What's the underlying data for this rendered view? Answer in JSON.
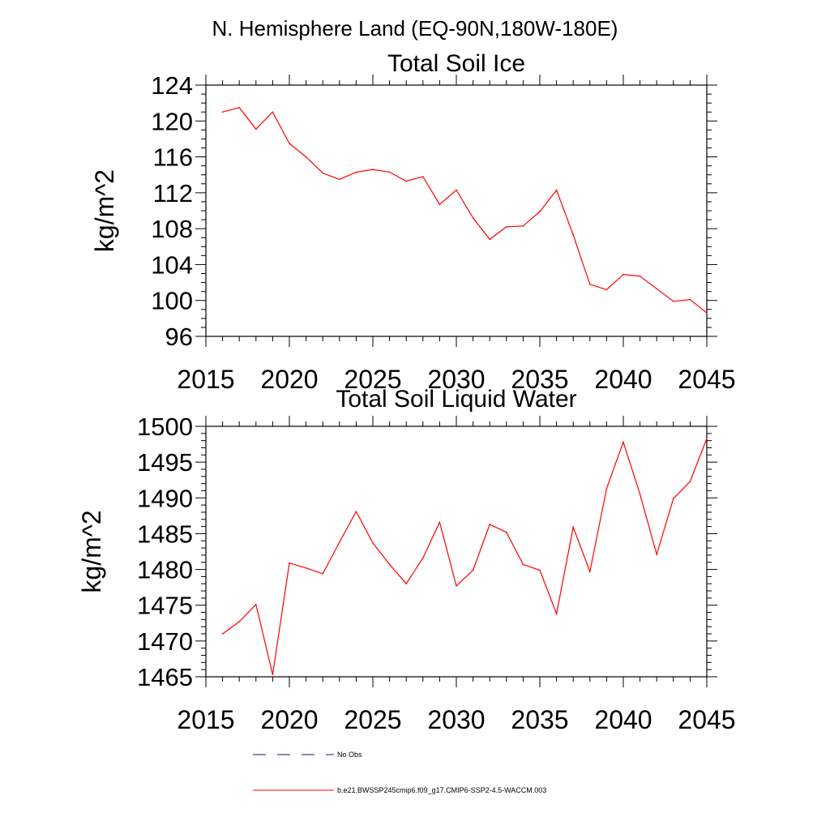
{
  "figure": {
    "main_title": "N. Hemisphere Land (EQ-90N,180W-180E)"
  },
  "chart_data": [
    {
      "type": "line",
      "title": "Total Soil Ice",
      "ylabel": "kg/m^2",
      "xlim": [
        2015,
        2045
      ],
      "ylim": [
        96,
        124
      ],
      "x_ticks": [
        2015,
        2020,
        2025,
        2030,
        2035,
        2040,
        2045
      ],
      "x_tick_labels": [
        "2015",
        "2020",
        "2025",
        "2030",
        "2035",
        "2040",
        "2045"
      ],
      "y_ticks": [
        96,
        100,
        104,
        108,
        112,
        116,
        120,
        124
      ],
      "y_tick_labels": [
        "96",
        "100",
        "104",
        "108",
        "112",
        "116",
        "120",
        "124"
      ],
      "x_minor_step": 1,
      "y_minor_step": 1,
      "grid": false,
      "series": [
        {
          "color": "#ff0000",
          "x": [
            2016,
            2017,
            2018,
            2019,
            2020,
            2021,
            2022,
            2023,
            2024,
            2025,
            2026,
            2027,
            2028,
            2029,
            2030,
            2031,
            2032,
            2033,
            2034,
            2035,
            2036,
            2037,
            2038,
            2039,
            2040,
            2041,
            2042,
            2043,
            2044,
            2045
          ],
          "values": [
            121.0,
            121.5,
            119.1,
            121.0,
            117.5,
            116.0,
            114.2,
            113.5,
            114.3,
            114.6,
            114.3,
            113.3,
            113.8,
            110.7,
            112.3,
            109.2,
            106.8,
            108.2,
            108.3,
            109.9,
            112.3,
            107.3,
            101.8,
            101.2,
            102.9,
            102.7,
            101.3,
            99.9,
            100.1,
            98.6
          ]
        }
      ]
    },
    {
      "type": "line",
      "title": "Total Soil Liquid Water",
      "ylabel": "kg/m^2",
      "xlim": [
        2015,
        2045
      ],
      "ylim": [
        1465,
        1500
      ],
      "x_ticks": [
        2015,
        2020,
        2025,
        2030,
        2035,
        2040,
        2045
      ],
      "x_tick_labels": [
        "2015",
        "2020",
        "2025",
        "2030",
        "2035",
        "2040",
        "2045"
      ],
      "y_ticks": [
        1465,
        1470,
        1475,
        1480,
        1485,
        1490,
        1495,
        1500
      ],
      "y_tick_labels": [
        "1465",
        "1470",
        "1475",
        "1480",
        "1485",
        "1490",
        "1495",
        "1500"
      ],
      "x_minor_step": 1,
      "y_minor_step": 1,
      "grid": false,
      "series": [
        {
          "color": "#ff0000",
          "x": [
            2016,
            2017,
            2018,
            2019,
            2020,
            2021,
            2022,
            2023,
            2024,
            2025,
            2026,
            2027,
            2028,
            2029,
            2030,
            2031,
            2032,
            2033,
            2034,
            2035,
            2036,
            2037,
            2038,
            2039,
            2040,
            2041,
            2042,
            2043,
            2044,
            2045
          ],
          "values": [
            1471.0,
            1472.7,
            1475.1,
            1465.3,
            1480.9,
            1480.2,
            1479.4,
            1483.8,
            1488.1,
            1483.7,
            1480.7,
            1478.0,
            1481.6,
            1486.6,
            1477.7,
            1479.9,
            1486.3,
            1485.2,
            1480.7,
            1479.9,
            1473.8,
            1485.9,
            1479.7,
            1491.3,
            1497.8,
            1490.5,
            1482.1,
            1489.9,
            1492.3,
            1498.3
          ]
        }
      ]
    }
  ],
  "legend": {
    "items": [
      {
        "label": "No Obs",
        "color": "#1a1a6e",
        "style": "dashed"
      },
      {
        "label": "b.e21.BWSSP245cmip6.f09_g17.CMIP6-SSP2-4.5-WACCM.003",
        "color": "#ff0000",
        "style": "solid"
      }
    ]
  }
}
